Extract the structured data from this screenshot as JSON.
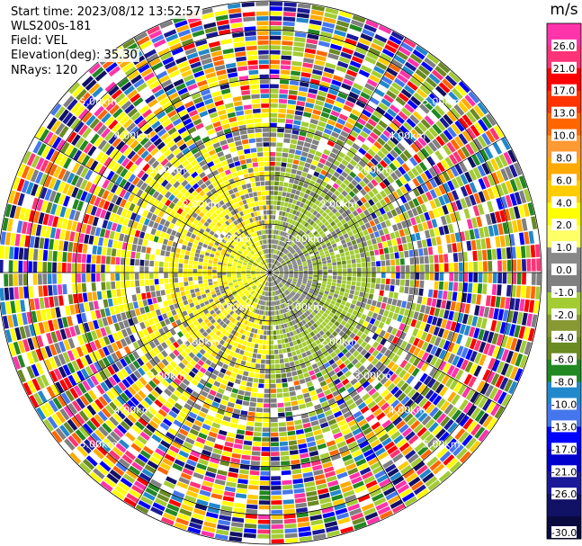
{
  "header": {
    "start_time": "Start time: 2023/08/12 13:52:57",
    "instrument": "WLS200s-181",
    "field": "Field: VEL",
    "elevation": "Elevation(deg): 35.30",
    "nrays": "NRays: 120"
  },
  "chart_data": {
    "type": "heatmap",
    "projection": "polar-ppi",
    "field": "VEL",
    "nrays": 120,
    "range_ring_labels": [
      "1.00km",
      "2.00km",
      "3.00km",
      "4.00km",
      "5.00km"
    ],
    "range_ring_km": [
      1,
      2,
      3,
      4,
      5
    ],
    "max_range_km": 5.6,
    "azimuth_spokes_deg": [
      0,
      30,
      60,
      90,
      120,
      150,
      180,
      210,
      240,
      270,
      300,
      330
    ],
    "colorbar": {
      "unit": "m/s",
      "vmin": -30.0,
      "vmax": 30.0,
      "tick_labels": [
        "26.0",
        "21.0",
        "17.0",
        "13.0",
        "10.0",
        "8.0",
        "6.0",
        "4.0",
        "2.0",
        "1.0",
        "0.0",
        "-1.0",
        "-2.0",
        "-4.0",
        "-6.0",
        "-8.0",
        "-10.0",
        "-13.0",
        "-17.0",
        "-21.0",
        "-26.0",
        "-30.0"
      ],
      "colors": [
        "#ff33aa",
        "#ff3377",
        "#ff0000",
        "#ff3300",
        "#ff6600",
        "#ff9933",
        "#ffaa00",
        "#ffcc00",
        "#ffff00",
        "#ffff66",
        "#888888",
        "#808080",
        "#a3cc33",
        "#889933",
        "#6a8a22",
        "#228822",
        "#2288cc",
        "#4477ee",
        "#0000ff",
        "#0000cc",
        "#1a1a99",
        "#111166",
        "#0a0a40"
      ]
    }
  }
}
